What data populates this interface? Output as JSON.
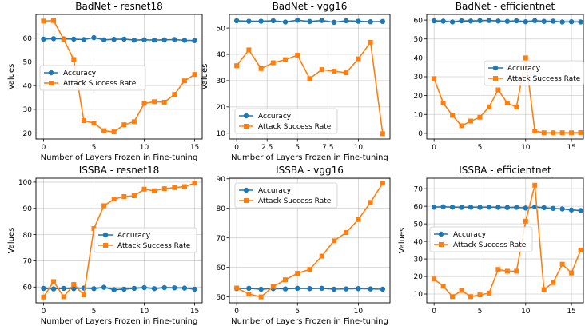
{
  "figure": {
    "background": "#ffffff"
  },
  "colors": {
    "accuracy": "#1f77b4",
    "asr": "#ff7f0e",
    "grid": "#b0b0b0"
  },
  "chart_data": [
    {
      "type": "line",
      "title": "BadNet - resnet18",
      "xlabel": "Number of Layers Frozen in Fine-tuning",
      "ylabel": "Values",
      "xlim": [
        -0.75,
        15.75
      ],
      "ylim": [
        17.5,
        70.0
      ],
      "xticks": [
        0,
        5,
        10,
        15
      ],
      "yticks": [
        20,
        30,
        40,
        50,
        60
      ],
      "grid": true,
      "legend_position": "center-left",
      "x": [
        0,
        1,
        2,
        3,
        4,
        5,
        6,
        7,
        8,
        9,
        10,
        11,
        12,
        13,
        14,
        15
      ],
      "series": [
        {
          "name": "Accuracy",
          "color": "#1f77b4",
          "marker": "circle",
          "values": [
            59.6,
            59.8,
            59.7,
            59.6,
            59.4,
            60.2,
            59.3,
            59.5,
            59.6,
            59.2,
            59.3,
            59.2,
            59.3,
            59.4,
            59.1,
            59.0
          ]
        },
        {
          "name": "Attack Success Rate",
          "color": "#ff7f0e",
          "marker": "square",
          "values": [
            67.2,
            67.4,
            59.5,
            51.0,
            25.2,
            24.2,
            21.0,
            20.5,
            23.5,
            24.8,
            32.5,
            33.2,
            33.0,
            36.3,
            42.0,
            44.7
          ]
        }
      ]
    },
    {
      "type": "line",
      "title": "BadNet - vgg16",
      "xlabel": "Number of Layers Frozen in Fine-tuning",
      "ylabel": "Values",
      "xlim": [
        -0.6,
        12.6
      ],
      "ylim": [
        7.8,
        55.2
      ],
      "xticks": [
        0,
        2.5,
        5,
        7.5,
        10
      ],
      "yticks": [
        10,
        20,
        30,
        40,
        50
      ],
      "grid": true,
      "legend_position": "lower-left",
      "x": [
        0,
        1,
        2,
        3,
        4,
        5,
        6,
        7,
        8,
        9,
        10,
        11,
        12
      ],
      "series": [
        {
          "name": "Accuracy",
          "color": "#1f77b4",
          "marker": "circle",
          "values": [
            52.8,
            52.6,
            52.6,
            52.8,
            52.3,
            53.0,
            52.5,
            52.9,
            52.2,
            52.8,
            52.6,
            52.4,
            52.5
          ]
        },
        {
          "name": "Attack Success Rate",
          "color": "#ff7f0e",
          "marker": "square",
          "values": [
            35.7,
            41.7,
            34.6,
            36.8,
            38.0,
            39.7,
            30.8,
            34.2,
            33.6,
            33.0,
            38.3,
            44.6,
            9.8
          ]
        }
      ]
    },
    {
      "type": "line",
      "title": "BadNet - efficientnet",
      "xlabel": "",
      "ylabel": "",
      "xlim": [
        -0.8,
        16.3
      ],
      "ylim": [
        -3.0,
        63.0
      ],
      "xticks": [
        0,
        5,
        10,
        15
      ],
      "yticks": [
        0,
        10,
        20,
        30,
        40,
        50,
        60
      ],
      "grid": true,
      "legend_position": "center-right",
      "x": [
        0,
        1,
        2,
        3,
        4,
        5,
        6,
        7,
        8,
        9,
        10,
        11,
        12,
        13,
        14,
        15,
        16
      ],
      "series": [
        {
          "name": "Accuracy",
          "color": "#1f77b4",
          "marker": "circle",
          "values": [
            59.6,
            59.4,
            59.0,
            59.6,
            59.5,
            59.7,
            59.8,
            59.5,
            59.3,
            59.6,
            59.1,
            59.7,
            59.3,
            59.4,
            59.0,
            59.1,
            59.0
          ]
        },
        {
          "name": "Attack Success Rate",
          "color": "#ff7f0e",
          "marker": "square",
          "values": [
            29.0,
            16.0,
            9.5,
            4.0,
            6.5,
            8.5,
            14.0,
            23.0,
            16.0,
            14.0,
            40.0,
            1.2,
            0.3,
            0.3,
            0.3,
            0.3,
            0.4
          ]
        }
      ]
    },
    {
      "type": "line",
      "title": "ISSBA - resnet18",
      "xlabel": "Number of Layers Frozen in Fine-tuning",
      "ylabel": "Values",
      "xlim": [
        -0.75,
        15.75
      ],
      "ylim": [
        54.0,
        101.5
      ],
      "xticks": [
        0,
        5,
        10,
        15
      ],
      "yticks": [
        60,
        70,
        80,
        90,
        100
      ],
      "grid": true,
      "legend_position": "center-right",
      "x": [
        0,
        1,
        2,
        3,
        4,
        5,
        6,
        7,
        8,
        9,
        10,
        11,
        12,
        13,
        14,
        15
      ],
      "series": [
        {
          "name": "Accuracy",
          "color": "#1f77b4",
          "marker": "circle",
          "values": [
            59.5,
            59.3,
            59.5,
            59.4,
            59.6,
            59.4,
            59.9,
            59.0,
            59.2,
            59.5,
            59.8,
            59.4,
            59.8,
            59.7,
            59.6,
            59.2
          ]
        },
        {
          "name": "Attack Success Rate",
          "color": "#ff7f0e",
          "marker": "square",
          "values": [
            56.2,
            62.1,
            56.3,
            61.0,
            57.0,
            82.3,
            91.0,
            93.5,
            94.5,
            94.8,
            97.3,
            96.7,
            97.5,
            97.9,
            98.3,
            99.6
          ]
        }
      ]
    },
    {
      "type": "line",
      "title": "ISSBA - vgg16",
      "xlabel": "Number of Layers Frozen in Fine-tuning",
      "ylabel": "",
      "xlim": [
        -0.6,
        12.6
      ],
      "ylim": [
        48.0,
        90.2
      ],
      "xticks": [
        0,
        5,
        10
      ],
      "yticks": [
        50,
        60,
        70,
        80,
        90
      ],
      "grid": true,
      "legend_position": "upper-left",
      "x": [
        0,
        1,
        2,
        3,
        4,
        5,
        6,
        7,
        8,
        9,
        10,
        11,
        12
      ],
      "series": [
        {
          "name": "Accuracy",
          "color": "#1f77b4",
          "marker": "circle",
          "values": [
            52.8,
            52.9,
            52.6,
            52.8,
            52.7,
            52.9,
            52.8,
            52.9,
            52.6,
            52.7,
            52.8,
            52.7,
            52.6
          ]
        },
        {
          "name": "Attack Success Rate",
          "color": "#ff7f0e",
          "marker": "square",
          "values": [
            53.0,
            51.0,
            50.0,
            53.5,
            55.8,
            58.0,
            59.3,
            63.8,
            69.0,
            71.8,
            76.2,
            82.0,
            88.5
          ]
        }
      ]
    },
    {
      "type": "line",
      "title": "ISSBA - efficientnet",
      "xlabel": "",
      "ylabel": "Values",
      "xlim": [
        -0.8,
        16.3
      ],
      "ylim": [
        5.0,
        76.0
      ],
      "xticks": [
        0,
        5,
        10,
        15
      ],
      "yticks": [
        10,
        20,
        30,
        40,
        50,
        60,
        70
      ],
      "grid": true,
      "legend_position": "center-left",
      "x": [
        0,
        1,
        2,
        3,
        4,
        5,
        6,
        7,
        8,
        9,
        10,
        11,
        12,
        13,
        14,
        15,
        16
      ],
      "series": [
        {
          "name": "Accuracy",
          "color": "#1f77b4",
          "marker": "circle",
          "values": [
            59.5,
            59.7,
            59.5,
            59.4,
            59.5,
            59.4,
            59.5,
            59.4,
            59.3,
            59.4,
            59.0,
            59.6,
            59.2,
            58.8,
            58.5,
            57.9,
            57.6
          ]
        },
        {
          "name": "Attack Success Rate",
          "color": "#ff7f0e",
          "marker": "square",
          "values": [
            18.5,
            14.5,
            8.5,
            12.0,
            8.5,
            9.5,
            10.5,
            24.0,
            23.0,
            23.0,
            51.5,
            72.0,
            12.5,
            16.5,
            27.0,
            22.0,
            35.0
          ]
        }
      ]
    }
  ]
}
